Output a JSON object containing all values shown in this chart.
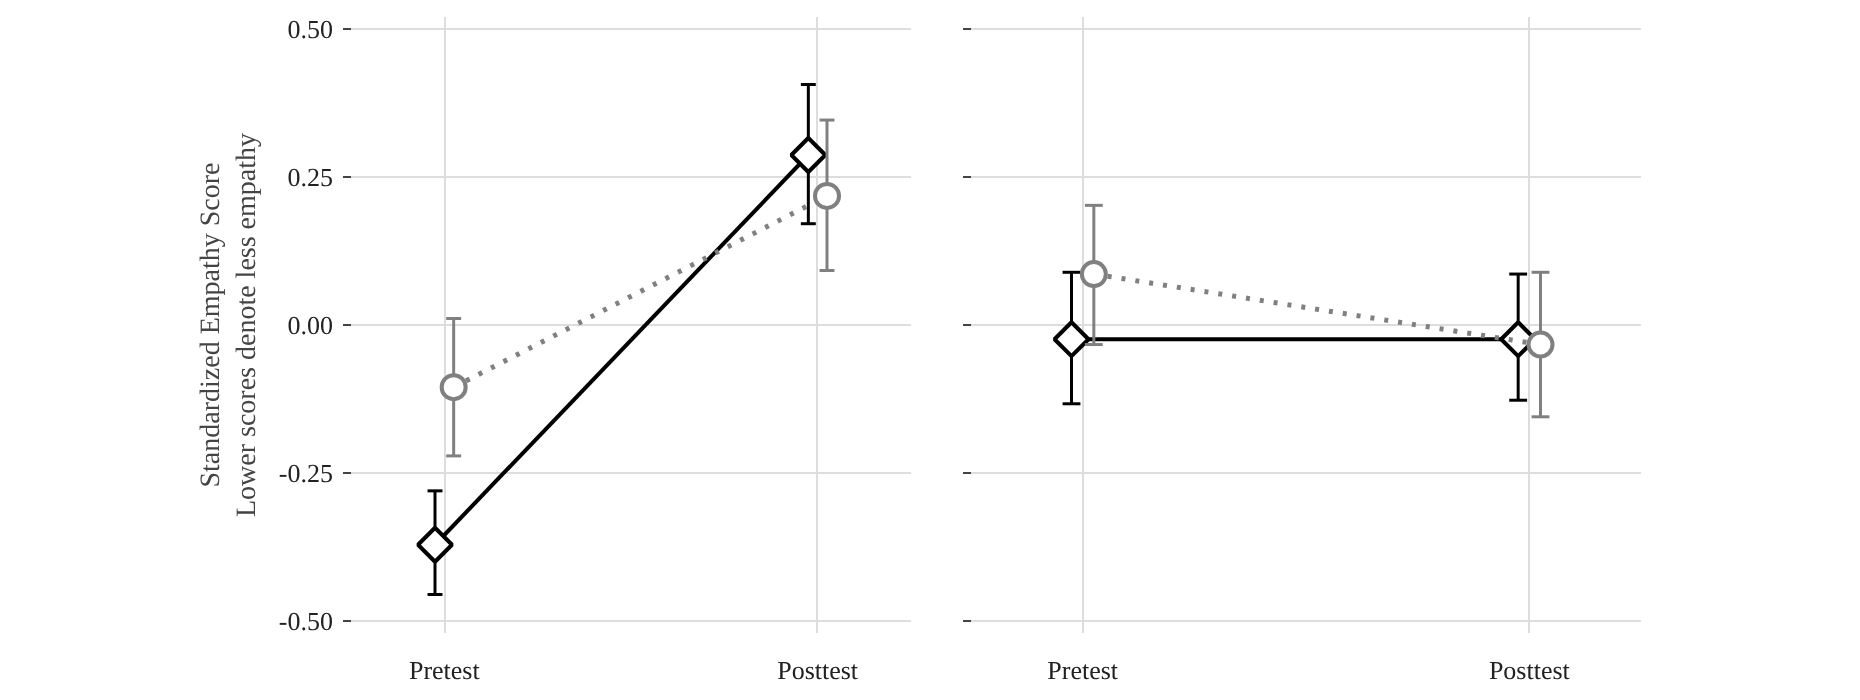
{
  "chart_data": [
    {
      "type": "line",
      "ylabel": "Standardized Empathy Score\nLower scores denote less empathy",
      "categories": [
        "Pretest",
        "Posttest"
      ],
      "ylim": [
        -0.52,
        0.52
      ],
      "yticks": [
        {
          "value": -0.5,
          "label": "-0.50"
        },
        {
          "value": -0.25,
          "label": "-0.25"
        },
        {
          "value": 0,
          "label": "0.00"
        },
        {
          "value": 0.25,
          "label": "0.25"
        },
        {
          "value": 0.5,
          "label": "0.50"
        }
      ],
      "grid": true,
      "series": [
        {
          "color": "#000000",
          "marker": "diamond",
          "line_style": "solid",
          "values": [
            -0.371,
            0.287
          ],
          "errors": [
            [
              -0.455,
              -0.28
            ],
            [
              0.171,
              0.406
            ]
          ]
        },
        {
          "color": "#808080",
          "marker": "circle",
          "line_style": "dotted",
          "values": [
            -0.105,
            0.218
          ],
          "errors": [
            [
              -0.221,
              0.011
            ],
            [
              0.092,
              0.346
            ]
          ]
        }
      ]
    },
    {
      "type": "line",
      "categories": [
        "Pretest",
        "Posttest"
      ],
      "ylim": [
        -0.52,
        0.52
      ],
      "yticks": [
        {
          "value": -0.5,
          "label": null
        },
        {
          "value": -0.25,
          "label": null
        },
        {
          "value": 0,
          "label": null
        },
        {
          "value": 0.25,
          "label": null
        },
        {
          "value": 0.5,
          "label": null
        }
      ],
      "grid": true,
      "tick_labels": "x",
      "series": [
        {
          "color": "#000000",
          "marker": "diamond",
          "line_style": "solid",
          "values": [
            -0.024,
            -0.024
          ],
          "errors": [
            [
              -0.133,
              0.089
            ],
            [
              -0.127,
              0.086
            ]
          ]
        },
        {
          "color": "#808080",
          "marker": "circle",
          "line_style": "dotted",
          "values": [
            0.086,
            -0.033
          ],
          "errors": [
            [
              -0.033,
              0.202
            ],
            [
              -0.155,
              0.089
            ]
          ]
        }
      ]
    }
  ]
}
